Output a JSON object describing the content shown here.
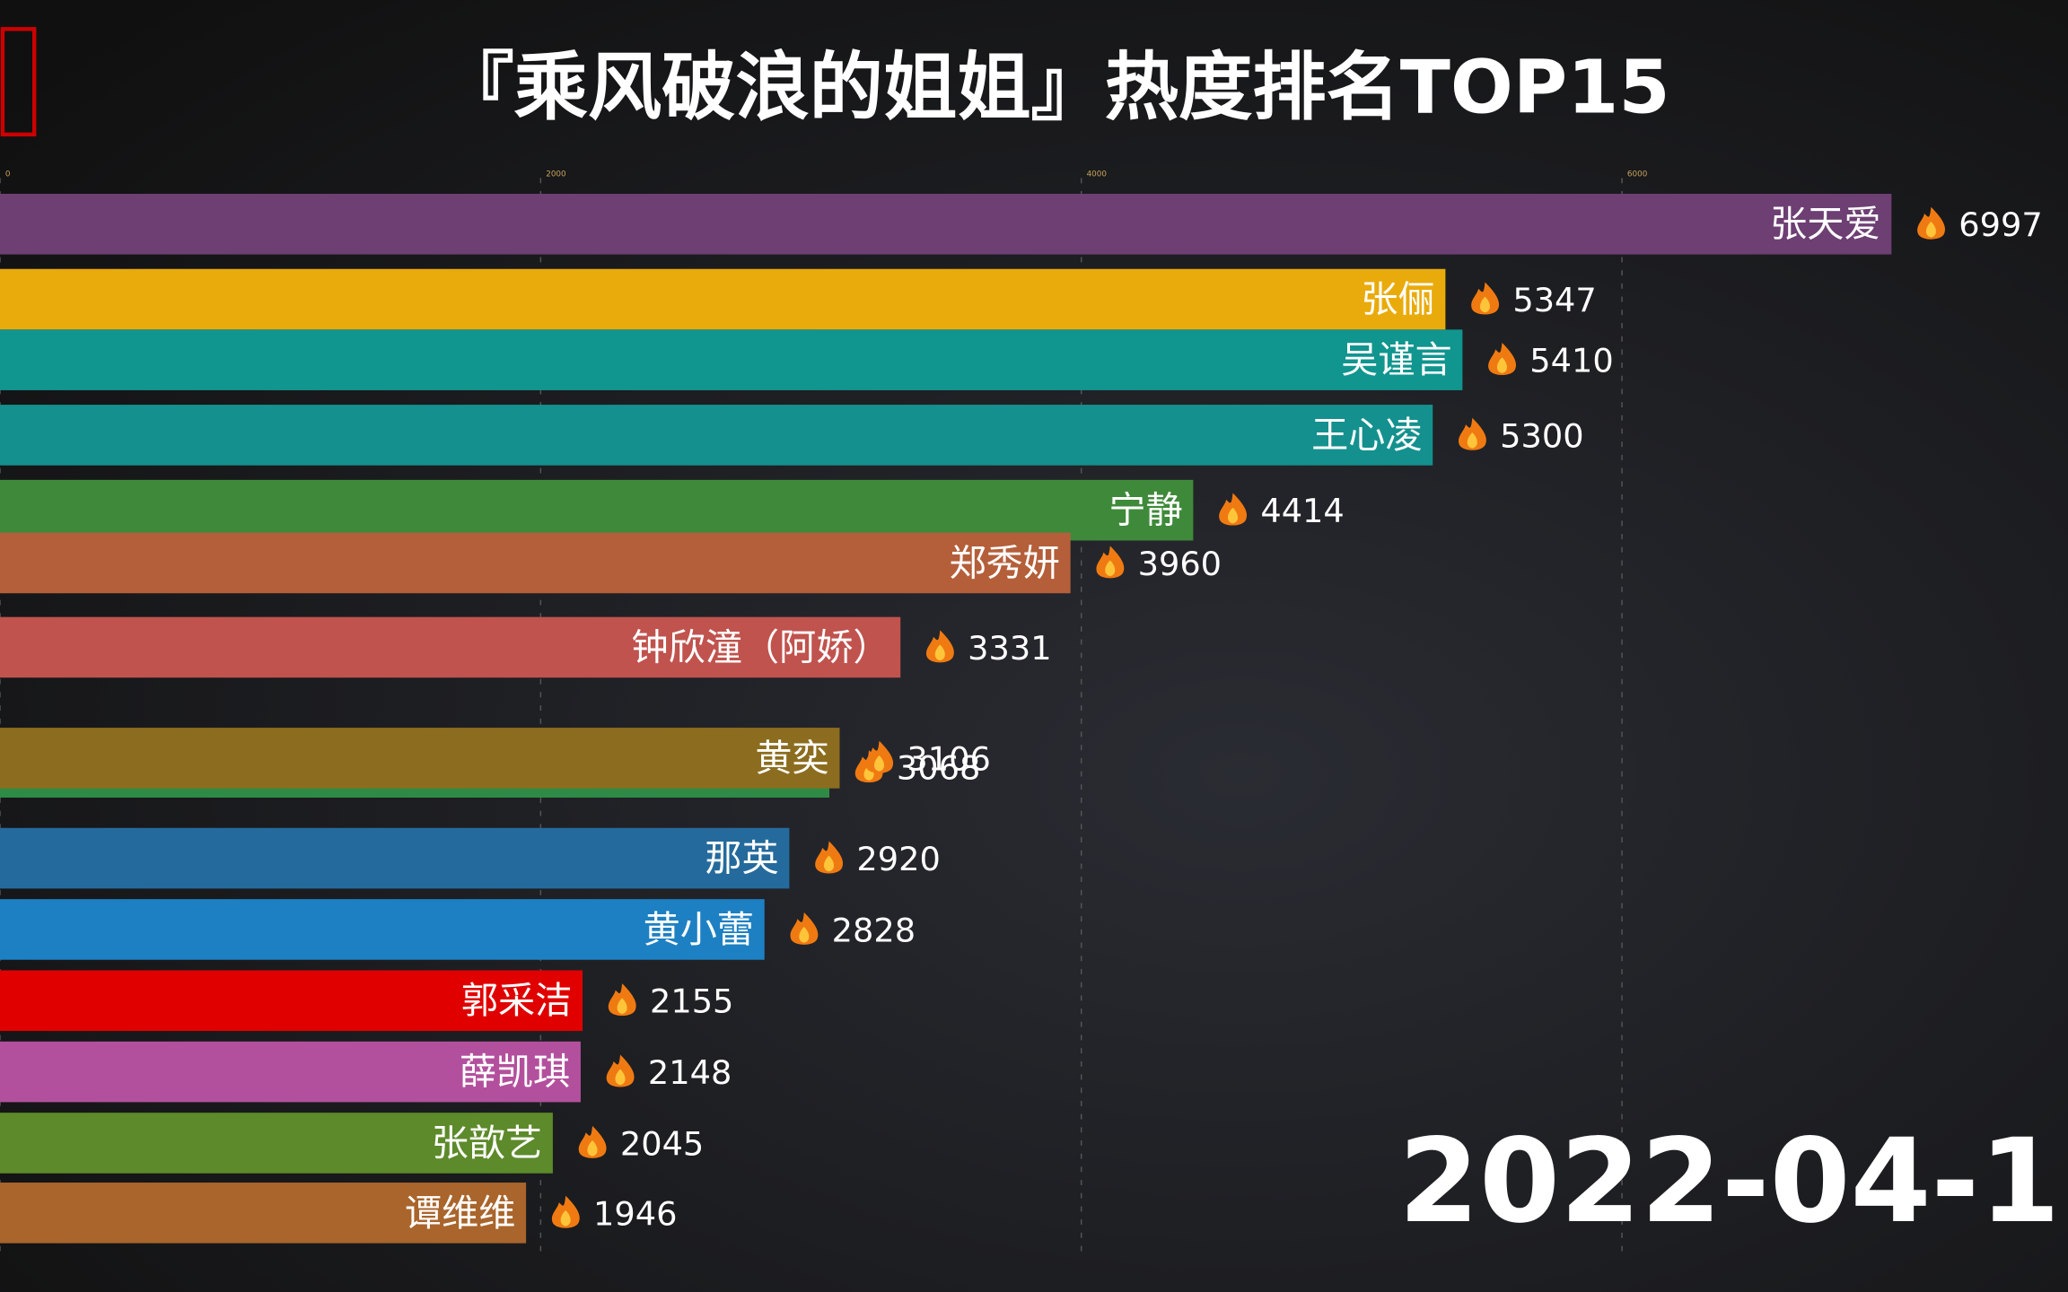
{
  "chart_data": {
    "type": "barh",
    "title": "『乘风破浪的姐姐』热度排名TOP15",
    "date_label": "2022-04-1",
    "categories": [
      "张天爱",
      "张俪",
      "吴谨言",
      "王心凌",
      "宁静",
      "郑秀妍",
      "钟欣潼（阿娇）",
      "黄奕",
      null,
      "那英",
      "黄小蕾",
      "郭采洁",
      "薛凯琪",
      "张歆艺",
      "谭维维"
    ],
    "values": [
      6997,
      5347,
      5410,
      5300,
      4414,
      3960,
      3331,
      3106,
      3068,
      2920,
      2828,
      2155,
      2148,
      2045,
      1946
    ],
    "colors": [
      "#6d3f73",
      "#e9ab0c",
      "#11958f",
      "#14918e",
      "#3f8a3a",
      "#b45f3a",
      "#c0534e",
      "#8c6d1f",
      "#2e8b45",
      "#256a9c",
      "#1d80c3",
      "#e00000",
      "#b3509d",
      "#5d8a2a",
      "#a9652c"
    ],
    "xlim": [
      0,
      7650
    ],
    "xticks": [
      0,
      2000,
      4000,
      6000
    ],
    "grid": true
  }
}
